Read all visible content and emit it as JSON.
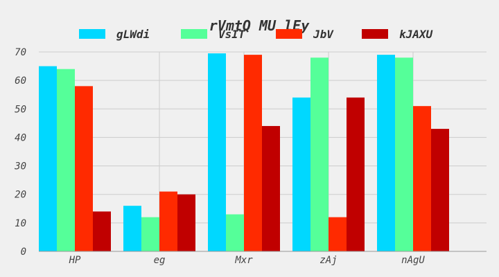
{
  "chart_data": {
    "type": "bar",
    "title": "rVmtQ  MU lEy",
    "xlabel": "",
    "ylabel": "",
    "categories": [
      "HP",
      "eg",
      "Mxr",
      "zAj",
      "nAgU"
    ],
    "series": [
      {
        "name": "gLWdi",
        "color": "#00d8ff",
        "values": [
          65,
          16,
          69.5,
          54,
          69
        ]
      },
      {
        "name": "VsIT",
        "color": "#55ff99",
        "values": [
          64,
          12,
          13,
          68,
          68
        ]
      },
      {
        "name": "JbV",
        "color": "#ff2a00",
        "values": [
          58,
          21,
          69,
          12,
          51
        ]
      },
      {
        "name": "kJAXU",
        "color": "#c00000",
        "values": [
          14,
          20,
          44,
          54,
          43
        ]
      }
    ],
    "ylim": [
      0,
      70
    ],
    "yticks": [
      0,
      10,
      20,
      30,
      40,
      50,
      60,
      70
    ],
    "grid": true,
    "legend_position": "top"
  }
}
